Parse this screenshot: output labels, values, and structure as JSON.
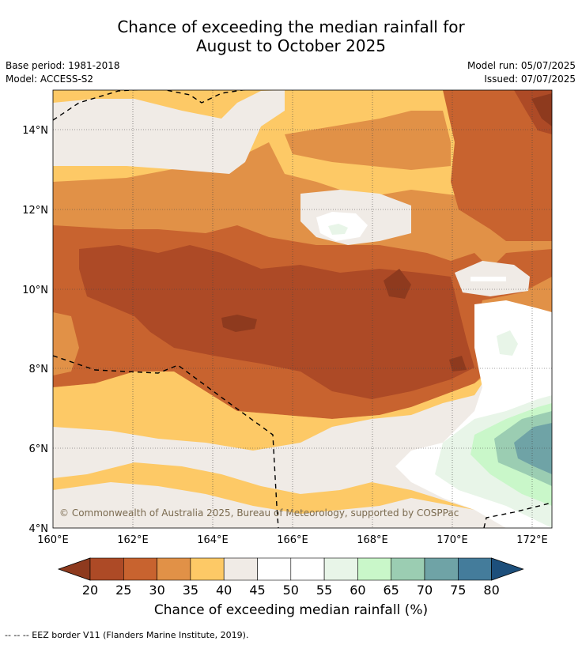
{
  "title": {
    "line1": "Chance of exceeding the median rainfall for",
    "line2": "August to October 2025"
  },
  "meta": {
    "base_period": "Base period: 1981-2018",
    "model": "Model: ACCESS-S2",
    "model_run": "Model run: 05/07/2025",
    "issued": "Issued: 07/07/2025"
  },
  "map": {
    "lat_labels": [
      "14°N",
      "12°N",
      "10°N",
      "8°N",
      "6°N",
      "4°N"
    ],
    "lon_labels": [
      "160°E",
      "162°E",
      "164°E",
      "166°E",
      "168°E",
      "170°E",
      "172°E"
    ],
    "copyright": "© Commonwealth of Australia 2025, Bureau of Meteorology, supported by COSPPac"
  },
  "colorbar": {
    "ticks": [
      "20",
      "25",
      "30",
      "35",
      "40",
      "45",
      "50",
      "55",
      "60",
      "65",
      "70",
      "75",
      "80"
    ],
    "colors": [
      "#8e3a1e",
      "#ad4a26",
      "#c8632f",
      "#e19147",
      "#fdc966",
      "#f0ebe6",
      "#ffffff",
      "#ffffff",
      "#e8f5e8",
      "#c9f7c9",
      "#9bcdb2",
      "#6fa3a6",
      "#447c9b",
      "#1d4f7b"
    ],
    "title": "Chance of exceeding median rainfall (%)"
  },
  "footer": "--  --  -- EEZ border V11 (Flanders Marine Institute, 2019)."
}
